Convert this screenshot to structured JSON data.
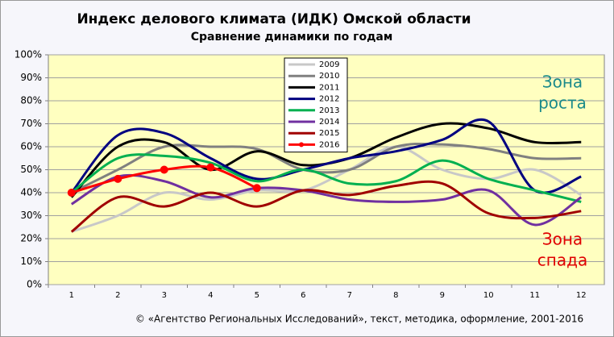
{
  "chart_data": {
    "type": "line",
    "title": "Индекс делового климата (ИДК) Омской области",
    "subtitle": "Сравнение динамики  по годам",
    "footer": "© «Агентство Региональных  Исследований», текст, методика, оформление,  2001-2016",
    "annotations": [
      {
        "lines": [
          "Зона",
          "роста"
        ],
        "color": "#1a8a8a"
      },
      {
        "lines": [
          "Зона",
          "спада"
        ],
        "color": "#e00000"
      }
    ],
    "categories": [
      "1",
      "2",
      "3",
      "4",
      "5",
      "6",
      "7",
      "8",
      "9",
      "10",
      "11",
      "12"
    ],
    "ylim": [
      0,
      100
    ],
    "yticks": [
      {
        "value": 0,
        "label": "0%"
      },
      {
        "value": 10,
        "label": "10%"
      },
      {
        "value": 20,
        "label": "20%"
      },
      {
        "value": 30,
        "label": "30%"
      },
      {
        "value": 40,
        "label": "40%"
      },
      {
        "value": 50,
        "label": "50%"
      },
      {
        "value": 60,
        "label": "60%"
      },
      {
        "value": 70,
        "label": "70%"
      },
      {
        "value": 80,
        "label": "80%"
      },
      {
        "value": 90,
        "label": "90%"
      },
      {
        "value": 100,
        "label": "100%"
      }
    ],
    "grid": true,
    "legend": "top-center",
    "series": [
      {
        "name": "2009",
        "color": "#c8c8c8",
        "values": [
          23,
          30,
          40,
          37,
          41,
          41,
          50,
          60,
          50,
          46,
          50,
          39
        ]
      },
      {
        "name": "2010",
        "color": "#808080",
        "values": [
          40,
          50,
          60,
          60,
          59,
          50,
          50,
          60,
          61,
          59,
          55,
          55
        ]
      },
      {
        "name": "2011",
        "color": "#000000",
        "values": [
          38,
          60,
          62,
          50,
          58,
          52,
          55,
          64,
          70,
          68,
          62,
          62
        ]
      },
      {
        "name": "2012",
        "color": "#000080",
        "values": [
          40,
          65,
          66,
          55,
          46,
          50,
          55,
          58,
          63,
          71,
          41,
          47
        ]
      },
      {
        "name": "2013",
        "color": "#00b050",
        "values": [
          40,
          55,
          56,
          53,
          45,
          50,
          44,
          45,
          54,
          46,
          41,
          36
        ]
      },
      {
        "name": "2014",
        "color": "#7030a0",
        "values": [
          35,
          47,
          45,
          38,
          42,
          41,
          37,
          36,
          37,
          41,
          26,
          38
        ]
      },
      {
        "name": "2015",
        "color": "#a00000",
        "values": [
          23,
          38,
          34,
          40,
          34,
          41,
          39,
          43,
          44,
          31,
          29,
          32
        ]
      },
      {
        "name": "2016",
        "color": "#ff0000",
        "markers": true,
        "values": [
          40,
          46,
          50,
          51,
          42,
          null,
          null,
          null,
          null,
          null,
          null,
          null
        ]
      }
    ]
  }
}
